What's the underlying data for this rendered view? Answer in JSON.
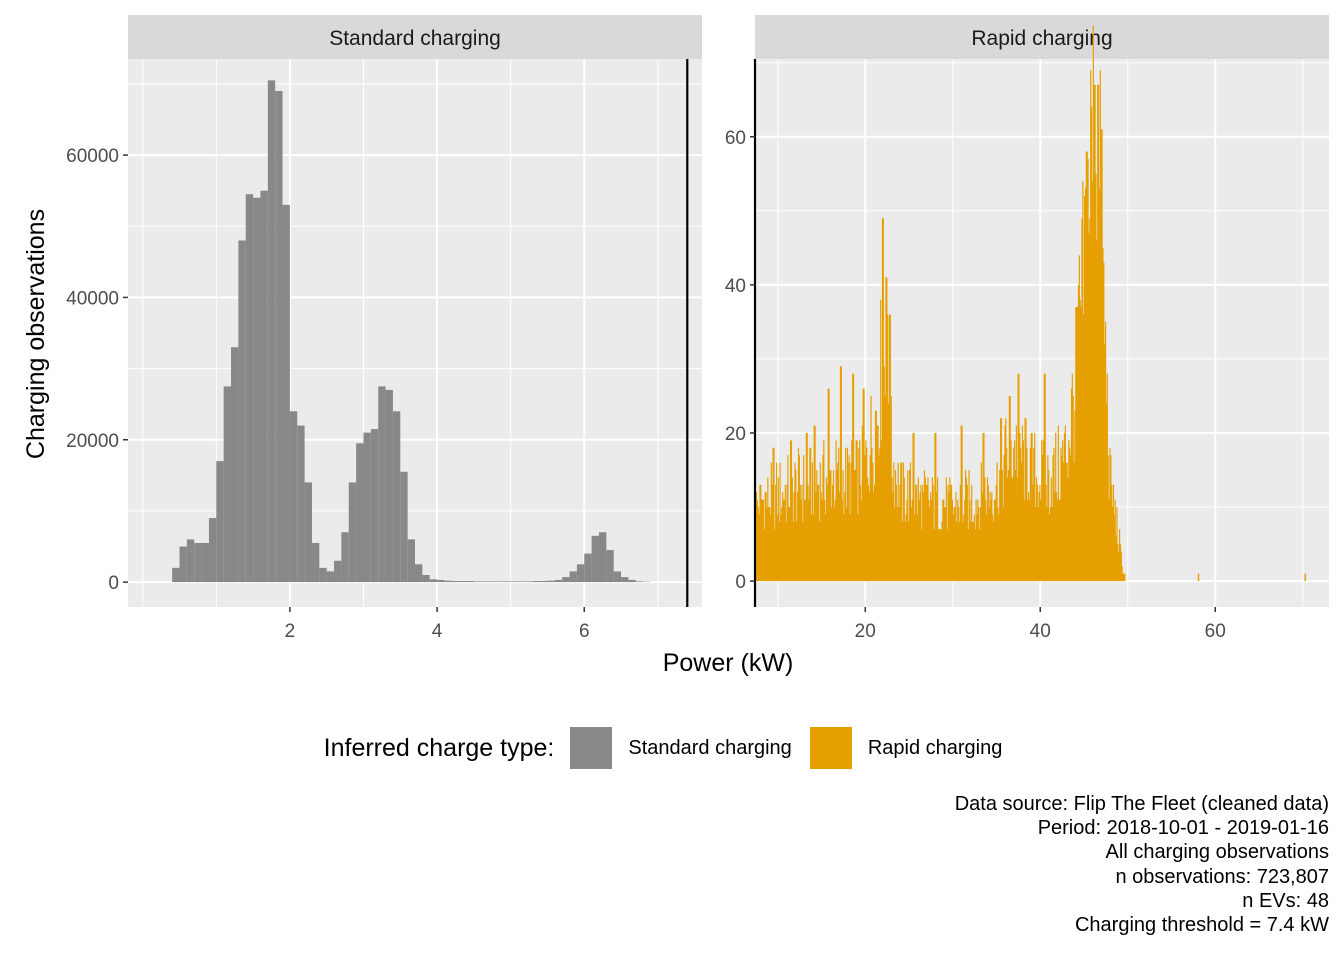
{
  "chart_data": {
    "type": "histogram",
    "xlabel": "Power (kW)",
    "ylabel": "Charging observations",
    "colors": {
      "standard": "#888888",
      "rapid": "#E69F00",
      "threshold_line": "#000000",
      "panel_bg": "#EBEBEB",
      "strip_bg": "#D9D9D9"
    },
    "legend": {
      "title": "Inferred charge type:",
      "position": "bottom",
      "items": [
        {
          "label": "Standard charging",
          "color": "#888888"
        },
        {
          "label": "Rapid charging",
          "color": "#E69F00"
        }
      ]
    },
    "threshold": 7.4,
    "panels": [
      {
        "strip": "Standard charging",
        "xlim": [
          -0.2,
          7.6
        ],
        "ylim": [
          -3500,
          73500
        ],
        "x_ticks": [
          2,
          4,
          6
        ],
        "y_ticks": [
          0,
          20000,
          40000,
          60000
        ],
        "y_tick_labels": [
          "0",
          "20000",
          "40000",
          "60000"
        ],
        "binwidth": 0.1,
        "bin_start": 0.4,
        "values": [
          2000,
          5000,
          6000,
          5500,
          5500,
          9000,
          17000,
          27500,
          33000,
          48000,
          54500,
          54000,
          55000,
          70500,
          69000,
          53000,
          24000,
          22000,
          14000,
          5500,
          2000,
          1500,
          3000,
          7000,
          14000,
          19500,
          21000,
          21500,
          27500,
          27000,
          24000,
          15500,
          6000,
          2500,
          1000,
          400,
          300,
          200,
          150,
          150,
          150,
          100,
          100,
          100,
          100,
          100,
          100,
          100,
          100,
          150,
          150,
          200,
          300,
          700,
          1500,
          2500,
          4000,
          6500,
          7000,
          4500,
          1500,
          700,
          300,
          100,
          50
        ]
      },
      {
        "strip": "Rapid charging",
        "xlim": [
          7.4,
          73
        ],
        "ylim": [
          -3.5,
          70.5
        ],
        "x_ticks": [
          20,
          40,
          60
        ],
        "y_ticks": [
          0,
          20,
          40,
          60
        ],
        "y_tick_labels": [
          "0",
          "20",
          "40",
          "60"
        ],
        "binwidth": 0.1,
        "envelope": [
          [
            7.4,
            11
          ],
          [
            9,
            12
          ],
          [
            11,
            13
          ],
          [
            13,
            14
          ],
          [
            15,
            15
          ],
          [
            17,
            15
          ],
          [
            19,
            15
          ],
          [
            20,
            17
          ],
          [
            21,
            22
          ],
          [
            21.5,
            27
          ],
          [
            22,
            33
          ],
          [
            22.5,
            30
          ],
          [
            23,
            18
          ],
          [
            24,
            13
          ],
          [
            26,
            12
          ],
          [
            30,
            11
          ],
          [
            33,
            12
          ],
          [
            35,
            14
          ],
          [
            36,
            18
          ],
          [
            37,
            20
          ],
          [
            38,
            18
          ],
          [
            39,
            16
          ],
          [
            40,
            15
          ],
          [
            41,
            15
          ],
          [
            42,
            16
          ],
          [
            43,
            19
          ],
          [
            44,
            28
          ],
          [
            45,
            45
          ],
          [
            45.5,
            57
          ],
          [
            46,
            64
          ],
          [
            46.5,
            63
          ],
          [
            47,
            50
          ],
          [
            47.5,
            30
          ],
          [
            48,
            14
          ],
          [
            49,
            6
          ],
          [
            49.5,
            1
          ],
          [
            50,
            0
          ]
        ],
        "spikes": [
          [
            9.5,
            18
          ],
          [
            11.5,
            19
          ],
          [
            13.3,
            20
          ],
          [
            14.2,
            21
          ],
          [
            15.8,
            26
          ],
          [
            17.2,
            29
          ],
          [
            18.6,
            28
          ],
          [
            19.8,
            26
          ],
          [
            22,
            49
          ],
          [
            22.4,
            41
          ],
          [
            22.8,
            36
          ],
          [
            25.5,
            20
          ],
          [
            28,
            20
          ],
          [
            31,
            21
          ],
          [
            33.5,
            20
          ],
          [
            35.5,
            22
          ],
          [
            36.5,
            25
          ],
          [
            37.5,
            28
          ],
          [
            40.5,
            28
          ],
          [
            44.2,
            37
          ],
          [
            45.3,
            58
          ],
          [
            46.2,
            67
          ],
          [
            46.6,
            67
          ],
          [
            47,
            61
          ]
        ],
        "outliers": [
          [
            58,
            1
          ],
          [
            70.2,
            1
          ]
        ]
      }
    ]
  },
  "caption": [
    "Data source: Flip The Fleet (cleaned data)",
    "Period: 2018-10-01 - 2019-01-16",
    "All charging observations",
    "n observations: 723,807",
    "n EVs: 48",
    "Charging threshold = 7.4 kW"
  ]
}
